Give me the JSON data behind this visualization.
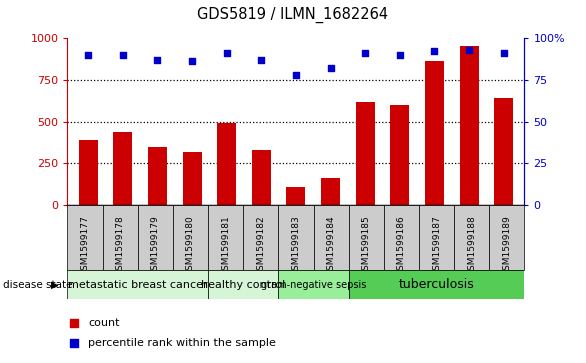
{
  "title": "GDS5819 / ILMN_1682264",
  "samples": [
    "GSM1599177",
    "GSM1599178",
    "GSM1599179",
    "GSM1599180",
    "GSM1599181",
    "GSM1599182",
    "GSM1599183",
    "GSM1599184",
    "GSM1599185",
    "GSM1599186",
    "GSM1599187",
    "GSM1599188",
    "GSM1599189"
  ],
  "counts": [
    390,
    440,
    350,
    320,
    490,
    330,
    110,
    165,
    620,
    600,
    860,
    950,
    640
  ],
  "percentiles": [
    90,
    90,
    87,
    86,
    91,
    87,
    78,
    82,
    91,
    90,
    92,
    93,
    91
  ],
  "bar_color": "#cc0000",
  "dot_color": "#0000cc",
  "ylim_left": [
    0,
    1000
  ],
  "ylim_right": [
    0,
    100
  ],
  "yticks_left": [
    0,
    250,
    500,
    750,
    1000
  ],
  "yticks_right": [
    0,
    25,
    50,
    75,
    100
  ],
  "disease_groups": [
    {
      "label": "metastatic breast cancer",
      "start": 0,
      "end": 4,
      "color": "#d6f5d6",
      "fontsize": 8
    },
    {
      "label": "healthy control",
      "start": 4,
      "end": 6,
      "color": "#d6f5d6",
      "fontsize": 8
    },
    {
      "label": "gram-negative sepsis",
      "start": 6,
      "end": 8,
      "color": "#99ee99",
      "fontsize": 7
    },
    {
      "label": "tuberculosis",
      "start": 8,
      "end": 13,
      "color": "#55cc55",
      "fontsize": 9
    }
  ],
  "disease_state_label": "disease state",
  "legend_items": [
    {
      "label": "count",
      "color": "#cc0000"
    },
    {
      "label": "percentile rank within the sample",
      "color": "#0000cc"
    }
  ],
  "bg_color": "#ffffff",
  "tick_label_color_left": "#cc0000",
  "tick_label_color_right": "#0000cc",
  "sample_box_color": "#cccccc",
  "grid_line_color": "#000000"
}
